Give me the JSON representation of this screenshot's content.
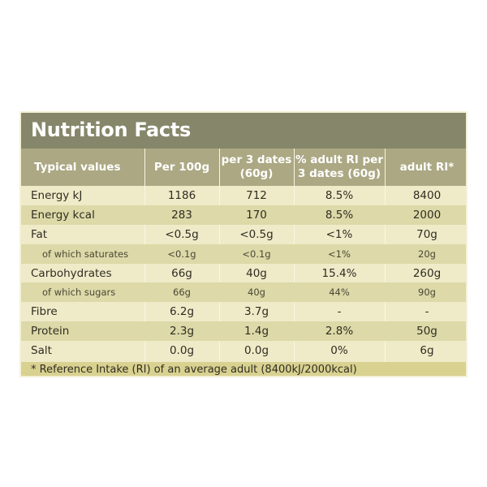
{
  "title": "Nutrition Facts",
  "columns": [
    "Typical values",
    "Per 100g",
    "per 3 dates (60g)",
    "% adult RI per 3 dates (60g)",
    "adult RI*"
  ],
  "rows": [
    {
      "name": "Energy kJ",
      "per100g": "1186",
      "per_serving": "712",
      "pct_ri": "8.5%",
      "adult_ri": "8400",
      "sub": false
    },
    {
      "name": "Energy kcal",
      "per100g": "283",
      "per_serving": "170",
      "pct_ri": "8.5%",
      "adult_ri": "2000",
      "sub": false
    },
    {
      "name": "Fat",
      "per100g": "<0.5g",
      "per_serving": "<0.5g",
      "pct_ri": "<1%",
      "adult_ri": "70g",
      "sub": false
    },
    {
      "name": "of which saturates",
      "per100g": "<0.1g",
      "per_serving": "<0.1g",
      "pct_ri": "<1%",
      "adult_ri": "20g",
      "sub": true
    },
    {
      "name": "Carbohydrates",
      "per100g": "66g",
      "per_serving": "40g",
      "pct_ri": "15.4%",
      "adult_ri": "260g",
      "sub": false
    },
    {
      "name": "of which sugars",
      "per100g": "66g",
      "per_serving": "40g",
      "pct_ri": "44%",
      "adult_ri": "90g",
      "sub": true
    },
    {
      "name": "Fibre",
      "per100g": "6.2g",
      "per_serving": "3.7g",
      "pct_ri": "-",
      "adult_ri": "-",
      "sub": false
    },
    {
      "name": "Protein",
      "per100g": "2.3g",
      "per_serving": "1.4g",
      "pct_ri": "2.8%",
      "adult_ri": "50g",
      "sub": false
    },
    {
      "name": "Salt",
      "per100g": "0.0g",
      "per_serving": "0.0g",
      "pct_ri": "0%",
      "adult_ri": "6g",
      "sub": false
    }
  ],
  "footnote": "* Reference Intake (RI) of an average adult (8400kJ/2000kcal)",
  "colors": {
    "title_bar": "#86866a",
    "header": "#aba883",
    "row_light": "#efeac8",
    "row_alt": "#ddd9a8",
    "footnote": "#d9d190"
  }
}
